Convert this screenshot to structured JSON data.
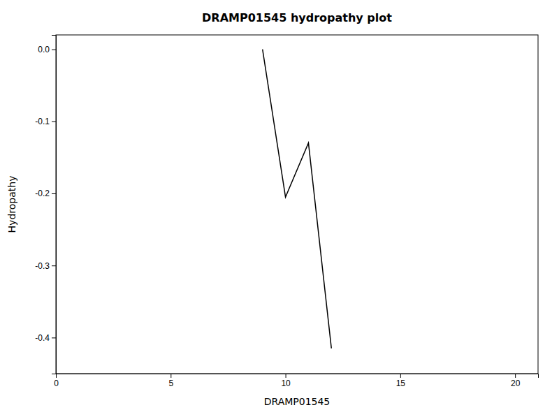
{
  "chart_data": {
    "type": "line",
    "title": "DRAMP01545 hydropathy plot",
    "xlabel": "DRAMP01545",
    "ylabel": "Hydropathy",
    "x": [
      9.0,
      10.0,
      11.0,
      12.0
    ],
    "values": [
      0.0,
      -0.205,
      -0.13,
      -0.415
    ],
    "color": "#000000",
    "xlim": [
      0,
      21
    ],
    "ylim": [
      -0.45,
      0.02
    ],
    "xticks": [
      0,
      5,
      10,
      15,
      20
    ],
    "yticks": [
      -0.4,
      -0.3,
      -0.2,
      -0.1,
      {
        "value": 0.0,
        "label": "0.0"
      }
    ],
    "grid": false
  }
}
